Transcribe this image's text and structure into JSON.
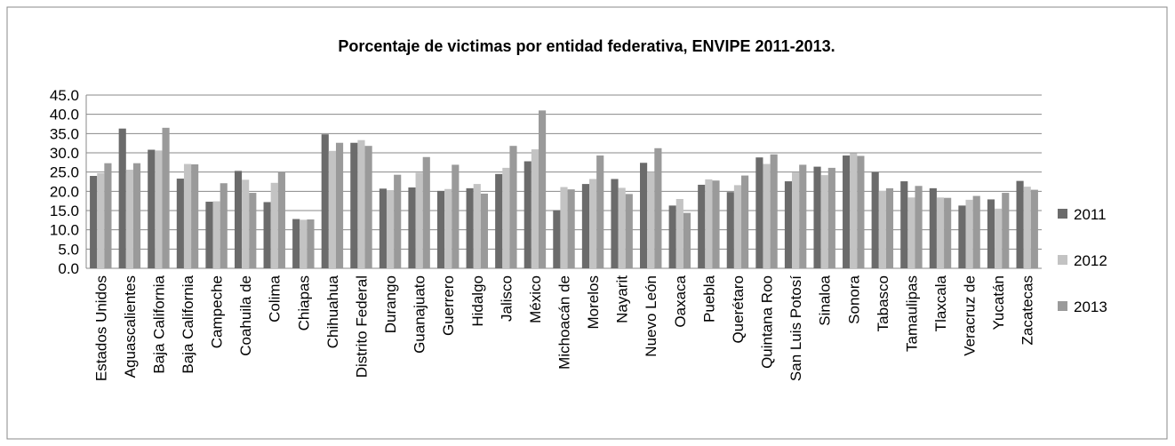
{
  "chart_data": {
    "type": "bar",
    "title": "Porcentaje de victimas por entidad federativa, ENVIPE 2011-2013.",
    "categories": [
      "Estados Unidos",
      "Aguascalientes",
      "Baja California",
      "Baja California",
      "Campeche",
      "Coahuila de",
      "Colima",
      "Chiapas",
      "Chihuahua",
      "Distrito Federal",
      "Durango",
      "Guanajuato",
      "Guerrero",
      "Hidalgo",
      "Jalisco",
      "México",
      "Michoacán de",
      "Morelos",
      "Nayarit",
      "Nuevo León",
      "Oaxaca",
      "Puebla",
      "Querétaro",
      "Quintana Roo",
      "San Luis Potosí",
      "Sinaloa",
      "Sonora",
      "Tabasco",
      "Tamaulipas",
      "Tlaxcala",
      "Veracruz de",
      "Yucatán",
      "Zacatecas"
    ],
    "series": [
      {
        "name": "2011",
        "color": "#6b6b6b",
        "values": [
          24.0,
          36.3,
          30.8,
          23.3,
          17.3,
          25.3,
          17.2,
          12.8,
          34.8,
          32.6,
          20.7,
          21.0,
          20.1,
          20.8,
          24.5,
          27.8,
          15.1,
          21.9,
          23.2,
          27.4,
          16.3,
          21.7,
          19.8,
          28.8,
          22.6,
          26.4,
          29.3,
          25.0,
          22.6,
          20.8,
          16.3,
          17.9,
          22.7
        ]
      },
      {
        "name": "2012",
        "color": "#c3c3c3",
        "values": [
          24.7,
          25.6,
          30.6,
          27.1,
          17.4,
          23.0,
          22.2,
          12.6,
          30.5,
          33.3,
          20.3,
          24.8,
          20.6,
          21.9,
          26.1,
          30.9,
          21.1,
          23.2,
          20.9,
          25.0,
          18.0,
          23.1,
          21.6,
          27.1,
          24.9,
          24.2,
          29.9,
          20.1,
          18.4,
          18.4,
          17.8,
          15.5,
          21.2
        ]
      },
      {
        "name": "2013",
        "color": "#9a9a9a",
        "values": [
          27.3,
          27.3,
          36.5,
          27.0,
          22.1,
          19.6,
          25.0,
          12.7,
          32.6,
          31.8,
          24.3,
          28.9,
          26.9,
          19.4,
          31.8,
          41.0,
          20.5,
          29.3,
          19.3,
          31.2,
          14.4,
          22.8,
          24.1,
          29.6,
          26.9,
          26.1,
          29.2,
          20.8,
          21.4,
          18.3,
          18.8,
          19.6,
          20.4
        ]
      }
    ],
    "ylim": [
      0,
      45
    ],
    "yticks": [
      {
        "value": 0,
        "label": "0.0"
      },
      {
        "value": 5,
        "label": "5.0"
      },
      {
        "value": 10,
        "label": "10.0"
      },
      {
        "value": 15,
        "label": "15.0"
      },
      {
        "value": 20,
        "label": "20.0"
      },
      {
        "value": 25,
        "label": "25.0"
      },
      {
        "value": 30,
        "label": "30.0"
      },
      {
        "value": 35,
        "label": "35.0"
      },
      {
        "value": 40,
        "label": "40.0"
      },
      {
        "value": 45,
        "label": "45.0"
      }
    ],
    "grid": true,
    "legend": "right"
  }
}
